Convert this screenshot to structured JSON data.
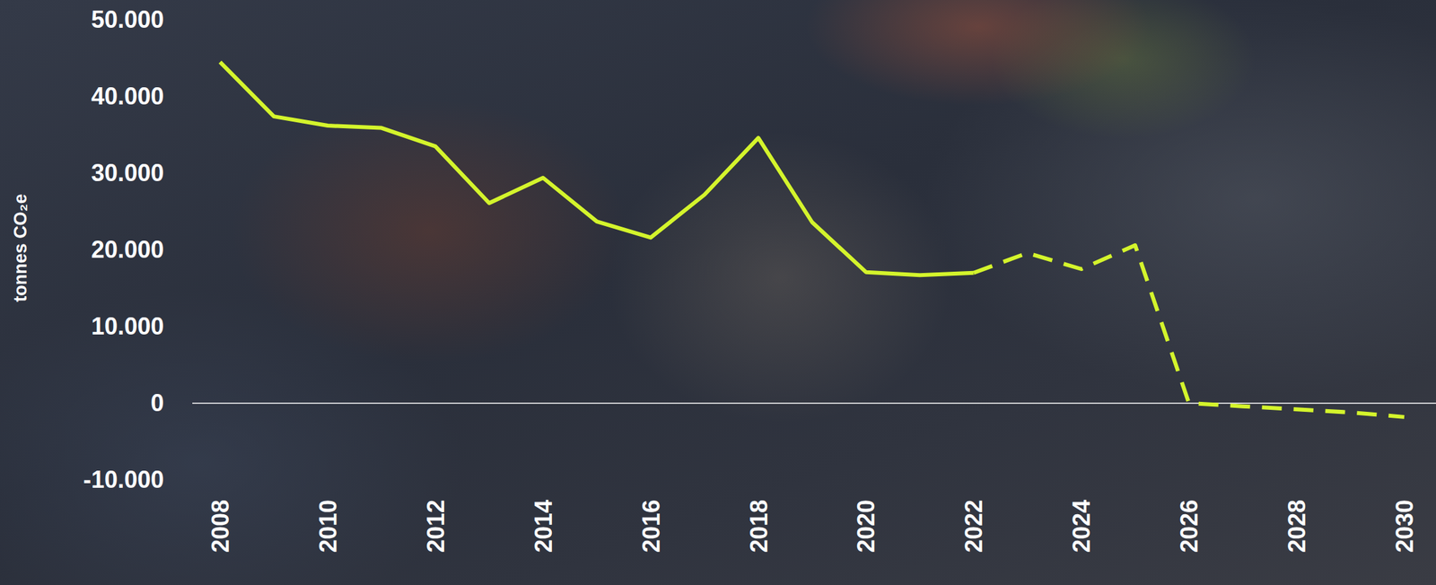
{
  "chart_data": {
    "type": "line",
    "y_label": "tonnes CO₂e",
    "x": [
      2008,
      2009,
      2010,
      2011,
      2012,
      2013,
      2014,
      2015,
      2016,
      2017,
      2018,
      2019,
      2020,
      2021,
      2022,
      2023,
      2024,
      2025,
      2026,
      2027,
      2028,
      2029,
      2030
    ],
    "series": [
      {
        "color": "#d4f42c",
        "line_style": "solid",
        "values": [
          44500,
          37400,
          36200,
          35900,
          33500,
          26100,
          29400,
          23700,
          21600,
          27200,
          34600,
          23600,
          17100,
          16700,
          17000,
          null,
          null,
          null,
          null,
          null,
          null,
          null,
          null
        ]
      },
      {
        "color": "#d4f42c",
        "line_style": "dashed",
        "values": [
          null,
          null,
          null,
          null,
          null,
          null,
          null,
          null,
          null,
          null,
          null,
          null,
          null,
          null,
          17000,
          19600,
          17500,
          20600,
          0,
          -400,
          -800,
          -1200,
          -1800
        ]
      }
    ],
    "xlim": [
      2008,
      2030
    ],
    "xticks": [
      2008,
      2010,
      2012,
      2014,
      2016,
      2018,
      2020,
      2022,
      2024,
      2026,
      2028,
      2030
    ],
    "ylim": [
      -10000,
      50000
    ],
    "yticks": [
      {
        "value": -10000,
        "label": "-10.000"
      },
      0,
      {
        "value": 10000,
        "label": "10.000"
      },
      {
        "value": 20000,
        "label": "20.000"
      },
      {
        "value": 30000,
        "label": "30.000"
      },
      {
        "value": 40000,
        "label": "40.000"
      },
      {
        "value": 50000,
        "label": "50.000"
      }
    ],
    "grid": false
  }
}
